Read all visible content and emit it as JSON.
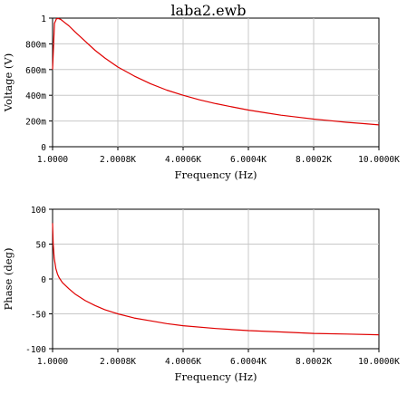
{
  "window": {
    "title": "laba2.ewb"
  },
  "chart_data": [
    {
      "type": "line",
      "ylabel": "Voltage (V)",
      "xlabel": "Frequency (Hz)",
      "xlim": [
        1.0,
        10000.0
      ],
      "ylim": [
        0,
        1
      ],
      "grid": true,
      "x_tick_labels": [
        "1.0000",
        "2.0008K",
        "4.0006K",
        "6.0004K",
        "8.0002K",
        "10.0000K"
      ],
      "y_tick_labels": [
        "0",
        "200m",
        "400m",
        "600m",
        "800m",
        "1"
      ],
      "y_ticks": [
        0,
        0.2,
        0.4,
        0.6,
        0.8,
        1.0
      ],
      "series": [
        {
          "color": "#e00000",
          "x": [
            1,
            60,
            120,
            180,
            250,
            350,
            500,
            700,
            1000,
            1300,
            1600,
            2000,
            2500,
            3000,
            3500,
            4000,
            4500,
            5000,
            5500,
            6000,
            6500,
            7000,
            7500,
            8000,
            8500,
            9000,
            9500,
            10000
          ],
          "y": [
            0.6,
            0.96,
            0.995,
            0.997,
            0.99,
            0.97,
            0.94,
            0.89,
            0.82,
            0.75,
            0.69,
            0.62,
            0.55,
            0.49,
            0.44,
            0.4,
            0.365,
            0.335,
            0.31,
            0.285,
            0.265,
            0.245,
            0.23,
            0.215,
            0.203,
            0.19,
            0.18,
            0.17
          ]
        }
      ]
    },
    {
      "type": "line",
      "ylabel": "Phase (deg)",
      "xlabel": "Frequency (Hz)",
      "xlim": [
        1.0,
        10000.0
      ],
      "ylim": [
        -100,
        100
      ],
      "grid": true,
      "x_tick_labels": [
        "1.0000",
        "2.0008K",
        "4.0006K",
        "6.0004K",
        "8.0002K",
        "10.0000K"
      ],
      "y_tick_labels": [
        "-100",
        "-50",
        "0",
        "50",
        "100"
      ],
      "y_ticks": [
        -100,
        -50,
        0,
        50,
        100
      ],
      "series": [
        {
          "color": "#e00000",
          "x": [
            1,
            20,
            50,
            100,
            150,
            200,
            300,
            500,
            700,
            1000,
            1300,
            1600,
            2000,
            2500,
            3000,
            3500,
            4000,
            5000,
            6000,
            7000,
            8000,
            9000,
            10000
          ],
          "y": [
            80,
            50,
            30,
            15,
            7,
            2,
            -5,
            -14,
            -22,
            -31,
            -38,
            -44,
            -50,
            -56,
            -60,
            -64,
            -67,
            -71,
            -74,
            -76,
            -78,
            -79,
            -80
          ]
        }
      ]
    }
  ]
}
